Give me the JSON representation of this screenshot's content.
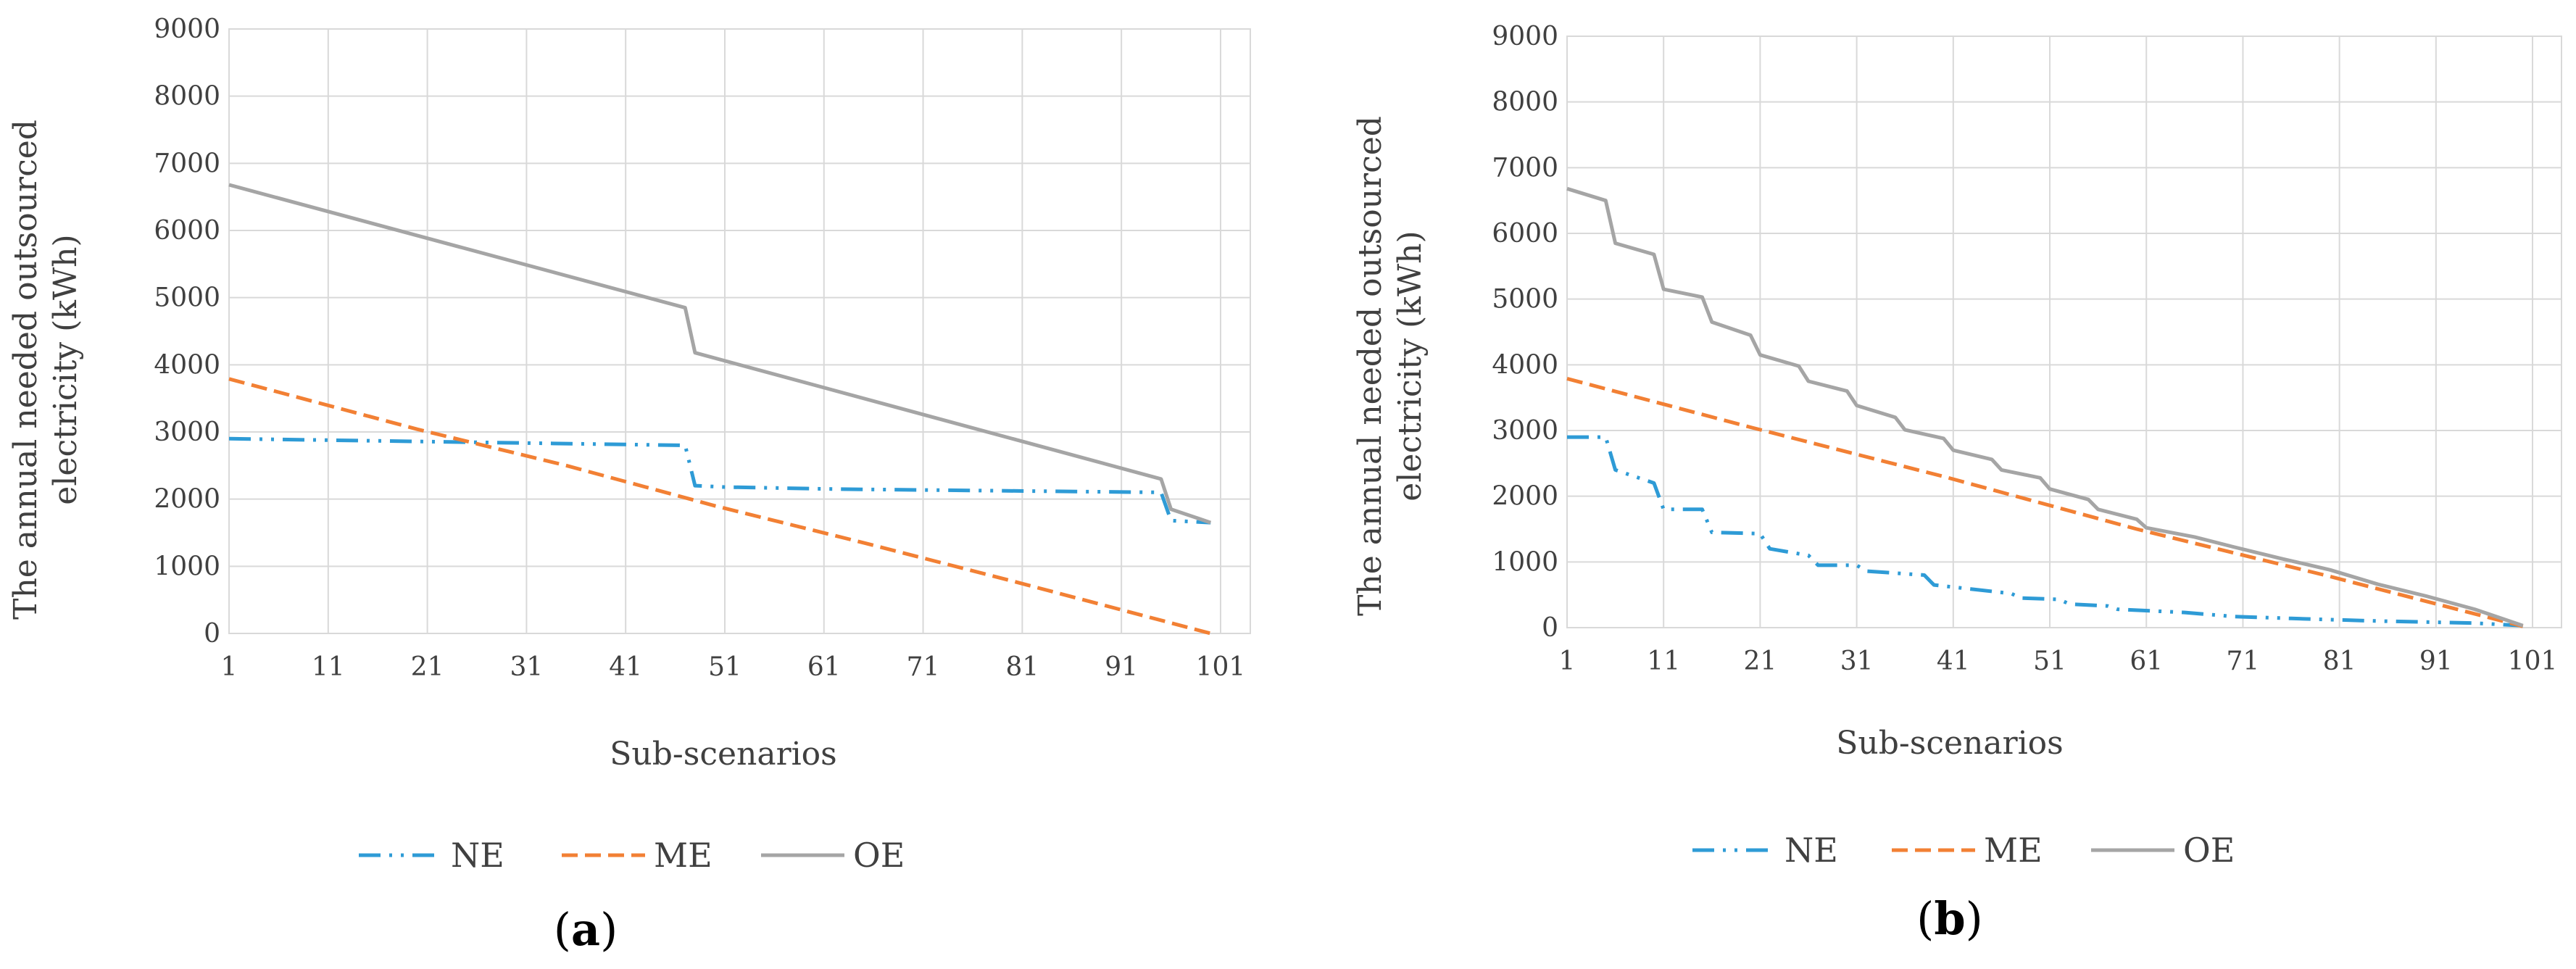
{
  "chart_data": [
    {
      "type": "line",
      "panel_label": "(a)",
      "panel_prefix": "(",
      "panel_letter": "a",
      "panel_suffix": ")",
      "ylabel_line1": "The annual needed outsourced",
      "ylabel_line2": "electricity (kWh)",
      "xlabel": "Sub-scenarios",
      "xlim": [
        1,
        104
      ],
      "ylim": [
        0,
        9000
      ],
      "x_ticks": [
        1,
        11,
        21,
        31,
        41,
        51,
        61,
        71,
        81,
        91,
        101
      ],
      "y_ticks": [
        0,
        1000,
        2000,
        3000,
        4000,
        5000,
        6000,
        7000,
        8000,
        9000
      ],
      "grid": true,
      "legend_position": "bottom",
      "series": [
        {
          "name": "NE",
          "color": "#2E9BD6",
          "dash": "dash-dot-dot",
          "points": [
            [
              1,
              2900
            ],
            [
              47,
              2800
            ],
            [
              48,
              2200
            ],
            [
              51,
              2180
            ],
            [
              62,
              2150
            ],
            [
              95,
              2100
            ],
            [
              96,
              1680
            ],
            [
              100,
              1650
            ]
          ]
        },
        {
          "name": "ME",
          "color": "#F28034",
          "dash": "dash",
          "points": [
            [
              1,
              3790
            ],
            [
              20,
              3040
            ],
            [
              35,
              2500
            ],
            [
              50,
              1900
            ],
            [
              65,
              1350
            ],
            [
              80,
              780
            ],
            [
              100,
              0
            ]
          ]
        },
        {
          "name": "OE",
          "color": "#A5A5A5",
          "dash": "solid",
          "points": [
            [
              1,
              6680
            ],
            [
              47,
              4850
            ],
            [
              48,
              4180
            ],
            [
              95,
              2300
            ],
            [
              96,
              1850
            ],
            [
              100,
              1650
            ]
          ]
        }
      ]
    },
    {
      "type": "line",
      "panel_label": "(b)",
      "panel_prefix": "(",
      "panel_letter": "b",
      "panel_suffix": ")",
      "ylabel_line1": "The annual needed outsourced",
      "ylabel_line2": "electricity (kWh)",
      "xlabel": "Sub-scenarios",
      "xlim": [
        1,
        104
      ],
      "ylim": [
        0,
        9000
      ],
      "x_ticks": [
        1,
        11,
        21,
        31,
        41,
        51,
        61,
        71,
        81,
        91,
        101
      ],
      "y_ticks": [
        0,
        1000,
        2000,
        3000,
        4000,
        5000,
        6000,
        7000,
        8000,
        9000
      ],
      "grid": true,
      "legend_position": "bottom",
      "series": [
        {
          "name": "NE",
          "color": "#2E9BD6",
          "dash": "dash-dot-dot",
          "points": [
            [
              1,
              2900
            ],
            [
              5,
              2900
            ],
            [
              6,
              2400
            ],
            [
              10,
              2200
            ],
            [
              11,
              1800
            ],
            [
              15,
              1800
            ],
            [
              16,
              1450
            ],
            [
              21,
              1430
            ],
            [
              22,
              1200
            ],
            [
              26,
              1100
            ],
            [
              27,
              950
            ],
            [
              31,
              950
            ],
            [
              32,
              860
            ],
            [
              38,
              800
            ],
            [
              39,
              650
            ],
            [
              47,
              520
            ],
            [
              48,
              450
            ],
            [
              52,
              430
            ],
            [
              53,
              360
            ],
            [
              57,
              330
            ],
            [
              58,
              280
            ],
            [
              65,
              230
            ],
            [
              70,
              170
            ],
            [
              76,
              140
            ],
            [
              85,
              100
            ],
            [
              95,
              70
            ],
            [
              100,
              30
            ]
          ]
        },
        {
          "name": "ME",
          "color": "#F28034",
          "dash": "dash",
          "points": [
            [
              1,
              3790
            ],
            [
              20,
              3050
            ],
            [
              40,
              2300
            ],
            [
              60,
              1500
            ],
            [
              80,
              780
            ],
            [
              100,
              20
            ]
          ]
        },
        {
          "name": "OE",
          "color": "#A5A5A5",
          "dash": "solid",
          "points": [
            [
              1,
              6680
            ],
            [
              5,
              6500
            ],
            [
              6,
              5850
            ],
            [
              10,
              5680
            ],
            [
              11,
              5150
            ],
            [
              15,
              5030
            ],
            [
              16,
              4650
            ],
            [
              20,
              4450
            ],
            [
              21,
              4150
            ],
            [
              25,
              3980
            ],
            [
              26,
              3750
            ],
            [
              30,
              3600
            ],
            [
              31,
              3380
            ],
            [
              35,
              3200
            ],
            [
              36,
              3010
            ],
            [
              40,
              2880
            ],
            [
              41,
              2700
            ],
            [
              45,
              2560
            ],
            [
              46,
              2400
            ],
            [
              50,
              2280
            ],
            [
              51,
              2110
            ],
            [
              55,
              1950
            ],
            [
              56,
              1800
            ],
            [
              60,
              1650
            ],
            [
              61,
              1520
            ],
            [
              66,
              1380
            ],
            [
              70,
              1230
            ],
            [
              75,
              1050
            ],
            [
              80,
              880
            ],
            [
              85,
              660
            ],
            [
              90,
              480
            ],
            [
              95,
              280
            ],
            [
              100,
              30
            ]
          ]
        }
      ]
    }
  ]
}
